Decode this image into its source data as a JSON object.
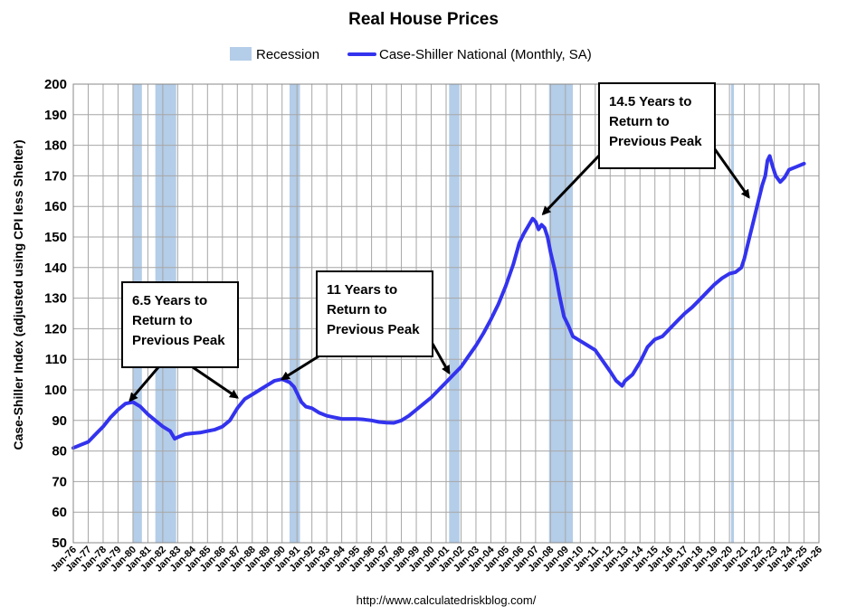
{
  "chart_data": {
    "type": "line",
    "title": "Real House Prices",
    "ylabel": "Case-Shiller Index (adjusted using CPI less Shelter)",
    "xlabel": "",
    "source": "http://www.calculatedriskblog.com/",
    "ylim": [
      50,
      200
    ],
    "yticks": [
      50,
      60,
      70,
      80,
      90,
      100,
      110,
      120,
      130,
      140,
      150,
      160,
      170,
      180,
      190,
      200
    ],
    "xlim": [
      1976,
      2026
    ],
    "xtick_labels": [
      "Jan-76",
      "Jan-77",
      "Jan-78",
      "Jan-79",
      "Jan-80",
      "Jan-81",
      "Jan-82",
      "Jan-83",
      "Jan-84",
      "Jan-85",
      "Jan-86",
      "Jan-87",
      "Jan-88",
      "Jan-89",
      "Jan-90",
      "Jan-91",
      "Jan-92",
      "Jan-93",
      "Jan-94",
      "Jan-95",
      "Jan-96",
      "Jan-97",
      "Jan-98",
      "Jan-99",
      "Jan-00",
      "Jan-01",
      "Jan-02",
      "Jan-03",
      "Jan-04",
      "Jan-05",
      "Jan-06",
      "Jan-07",
      "Jan-08",
      "Jan-09",
      "Jan-10",
      "Jan-11",
      "Jan-12",
      "Jan-13",
      "Jan-14",
      "Jan-15",
      "Jan-16",
      "Jan-17",
      "Jan-18",
      "Jan-19",
      "Jan-20",
      "Jan-21",
      "Jan-22",
      "Jan-23",
      "Jan-24",
      "Jan-25",
      "Jan-26"
    ],
    "grid": true,
    "legend": {
      "placement": "top",
      "entries": [
        {
          "label": "Recession",
          "color": "#b4cde8",
          "kind": "patch"
        },
        {
          "label": "Case-Shiller National (Monthly, SA)",
          "color": "#3333ee",
          "kind": "line"
        }
      ]
    },
    "recessions": [
      {
        "start": 1980.0,
        "end": 1980.6
      },
      {
        "start": 1981.5,
        "end": 1982.9
      },
      {
        "start": 1990.5,
        "end": 1991.2
      },
      {
        "start": 2001.2,
        "end": 2001.9
      },
      {
        "start": 2007.9,
        "end": 2009.5
      },
      {
        "start": 2020.1,
        "end": 2020.3
      }
    ],
    "series": [
      {
        "name": "Case-Shiller National (Monthly, SA)",
        "color": "#3333ee",
        "points": [
          [
            1976.0,
            81
          ],
          [
            1976.5,
            82
          ],
          [
            1977.0,
            83
          ],
          [
            1977.5,
            85.5
          ],
          [
            1978.0,
            88
          ],
          [
            1978.5,
            91
          ],
          [
            1979.0,
            93.5
          ],
          [
            1979.5,
            95.5
          ],
          [
            1980.0,
            96
          ],
          [
            1980.5,
            94.5
          ],
          [
            1981.0,
            92
          ],
          [
            1981.5,
            90
          ],
          [
            1982.0,
            88
          ],
          [
            1982.5,
            86.5
          ],
          [
            1982.8,
            84
          ],
          [
            1983.0,
            84.5
          ],
          [
            1983.5,
            85.5
          ],
          [
            1984.0,
            85.8
          ],
          [
            1984.5,
            86
          ],
          [
            1985.0,
            86.5
          ],
          [
            1985.5,
            87
          ],
          [
            1986.0,
            88
          ],
          [
            1986.5,
            90
          ],
          [
            1987.0,
            94
          ],
          [
            1987.5,
            97
          ],
          [
            1988.0,
            98.5
          ],
          [
            1988.5,
            100
          ],
          [
            1989.0,
            101.5
          ],
          [
            1989.5,
            103
          ],
          [
            1990.0,
            103.5
          ],
          [
            1990.5,
            102.5
          ],
          [
            1990.8,
            101
          ],
          [
            1991.0,
            99
          ],
          [
            1991.3,
            96
          ],
          [
            1991.6,
            94.5
          ],
          [
            1992.0,
            94
          ],
          [
            1992.5,
            92.5
          ],
          [
            1993.0,
            91.5
          ],
          [
            1993.5,
            91
          ],
          [
            1994.0,
            90.5
          ],
          [
            1994.5,
            90.5
          ],
          [
            1995.0,
            90.5
          ],
          [
            1995.5,
            90.3
          ],
          [
            1996.0,
            90
          ],
          [
            1996.5,
            89.5
          ],
          [
            1997.0,
            89.3
          ],
          [
            1997.5,
            89.2
          ],
          [
            1998.0,
            90
          ],
          [
            1998.5,
            91.5
          ],
          [
            1999.0,
            93.5
          ],
          [
            1999.5,
            95.5
          ],
          [
            2000.0,
            97.5
          ],
          [
            2000.5,
            100
          ],
          [
            2001.0,
            102.5
          ],
          [
            2001.5,
            105
          ],
          [
            2002.0,
            107.5
          ],
          [
            2002.5,
            111
          ],
          [
            2003.0,
            114.5
          ],
          [
            2003.5,
            118.5
          ],
          [
            2004.0,
            123
          ],
          [
            2004.5,
            128
          ],
          [
            2005.0,
            134
          ],
          [
            2005.5,
            141
          ],
          [
            2005.9,
            148
          ],
          [
            2006.2,
            151
          ],
          [
            2006.5,
            153.5
          ],
          [
            2006.8,
            156
          ],
          [
            2007.0,
            155
          ],
          [
            2007.2,
            152.5
          ],
          [
            2007.4,
            154
          ],
          [
            2007.6,
            153
          ],
          [
            2007.8,
            150
          ],
          [
            2008.0,
            145
          ],
          [
            2008.3,
            139
          ],
          [
            2008.6,
            131
          ],
          [
            2008.9,
            124
          ],
          [
            2009.2,
            121
          ],
          [
            2009.5,
            117.5
          ],
          [
            2010.0,
            116
          ],
          [
            2010.5,
            114.5
          ],
          [
            2011.0,
            113
          ],
          [
            2011.5,
            109.5
          ],
          [
            2012.0,
            106
          ],
          [
            2012.4,
            103
          ],
          [
            2012.8,
            101.3
          ],
          [
            2013.0,
            103
          ],
          [
            2013.5,
            105
          ],
          [
            2014.0,
            109
          ],
          [
            2014.5,
            114
          ],
          [
            2015.0,
            116.5
          ],
          [
            2015.5,
            117.5
          ],
          [
            2016.0,
            120
          ],
          [
            2016.5,
            122.5
          ],
          [
            2017.0,
            125
          ],
          [
            2017.5,
            127
          ],
          [
            2018.0,
            129.5
          ],
          [
            2018.5,
            132
          ],
          [
            2019.0,
            134.5
          ],
          [
            2019.5,
            136.5
          ],
          [
            2020.0,
            138
          ],
          [
            2020.4,
            138.5
          ],
          [
            2020.8,
            140
          ],
          [
            2021.0,
            143
          ],
          [
            2021.3,
            149
          ],
          [
            2021.6,
            155
          ],
          [
            2021.9,
            161
          ],
          [
            2022.2,
            167
          ],
          [
            2022.4,
            170
          ],
          [
            2022.55,
            175
          ],
          [
            2022.7,
            176.5
          ],
          [
            2022.9,
            173
          ],
          [
            2023.1,
            170
          ],
          [
            2023.4,
            168
          ],
          [
            2023.7,
            169.5
          ],
          [
            2024.0,
            172
          ],
          [
            2024.5,
            173
          ],
          [
            2025.0,
            174
          ]
        ]
      }
    ],
    "annotations": [
      {
        "lines": [
          "6.5 Years to",
          "Return to",
          "Previous Peak"
        ],
        "arrows_to": [
          [
            1979.8,
            96.5
          ],
          [
            1987.0,
            97.5
          ]
        ]
      },
      {
        "lines": [
          "11 Years to",
          "Return to",
          "Previous Peak"
        ],
        "arrows_to": [
          [
            1990.0,
            103.5
          ],
          [
            2001.2,
            105.5
          ]
        ]
      },
      {
        "lines": [
          "14.5 Years to",
          "Return to",
          "Previous Peak"
        ],
        "arrows_to": [
          [
            2007.5,
            157.5
          ],
          [
            2021.3,
            163
          ]
        ]
      }
    ]
  }
}
